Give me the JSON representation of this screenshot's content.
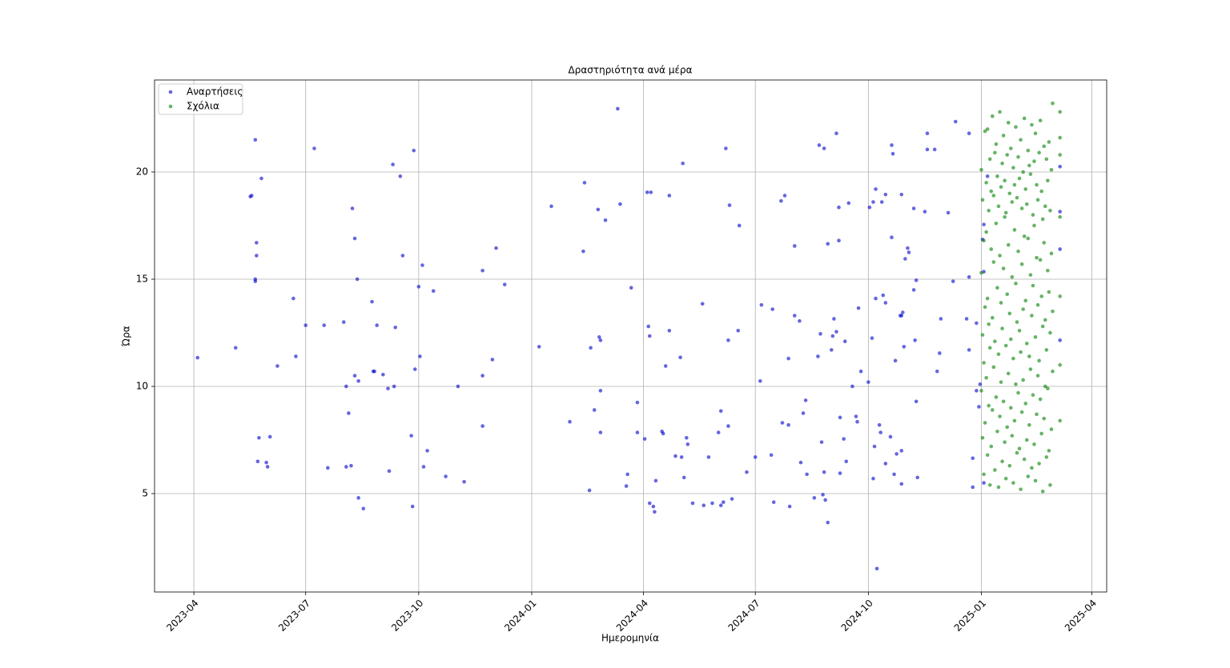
{
  "chart_data": {
    "type": "scatter",
    "title": "Δραστηριότητα ανά μέρα",
    "x_label": "Ημερομηνία",
    "y_label": "Ώρα",
    "xlim": [
      "2023-02-28",
      "2025-04-13"
    ],
    "xticks": [
      "2023-04",
      "2023-07",
      "2023-10",
      "2024-01",
      "2024-04",
      "2024-07",
      "2024-10",
      "2025-01",
      "2025-04"
    ],
    "ylim": [
      0.41,
      24.29
    ],
    "yticks": [
      5,
      10,
      15,
      20
    ],
    "grid": true,
    "legend": "upper left",
    "series": [
      {
        "name": "Αναρτήσεις",
        "color": "#0000cc",
        "x": [
          "2023-04-04",
          "2023-05-05",
          "2023-05-17",
          "2023-05-18",
          "2023-05-21",
          "2023-05-21",
          "2023-05-21",
          "2023-05-22",
          "2023-05-22",
          "2023-05-24",
          "2023-05-23",
          "2023-05-26",
          "2023-05-30",
          "2023-05-31",
          "2023-06-02",
          "2023-06-08",
          "2023-06-21",
          "2023-06-23",
          "2023-07-01",
          "2023-07-08",
          "2023-07-16",
          "2023-07-19",
          "2023-08-01",
          "2023-08-03",
          "2023-08-05",
          "2023-08-03",
          "2023-08-07",
          "2023-08-08",
          "2023-08-10",
          "2023-08-10",
          "2023-08-12",
          "2023-08-13",
          "2023-08-13",
          "2023-08-17",
          "2023-08-24",
          "2023-08-25",
          "2023-08-26",
          "2023-08-28",
          "2023-09-02",
          "2023-09-06",
          "2023-09-07",
          "2023-09-10",
          "2023-09-11",
          "2023-09-12",
          "2023-09-16",
          "2023-09-18",
          "2023-09-25",
          "2023-09-26",
          "2023-09-27",
          "2023-09-28",
          "2023-10-01",
          "2023-10-02",
          "2023-10-04",
          "2023-10-05",
          "2023-10-08",
          "2023-10-13",
          "2023-10-23",
          "2023-11-02",
          "2023-11-07",
          "2023-11-22",
          "2023-11-22",
          "2023-11-22",
          "2023-11-30",
          "2023-12-03",
          "2023-12-10",
          "2024-01-07",
          "2024-01-17",
          "2024-02-01",
          "2024-02-13",
          "2024-02-12",
          "2024-02-17",
          "2024-02-18",
          "2024-02-21",
          "2024-02-24",
          "2024-02-25",
          "2024-02-26",
          "2024-02-26",
          "2024-02-26",
          "2024-03-01",
          "2024-03-11",
          "2024-03-13",
          "2024-03-19",
          "2024-03-18",
          "2024-03-22",
          "2024-03-27",
          "2024-03-27",
          "2024-04-02",
          "2024-04-04",
          "2024-04-07",
          "2024-04-05",
          "2024-04-06",
          "2024-04-06",
          "2024-04-09",
          "2024-04-10",
          "2024-04-11",
          "2024-04-16",
          "2024-04-17",
          "2024-04-19",
          "2024-04-22",
          "2024-04-22",
          "2024-04-27",
          "2024-05-01",
          "2024-05-02",
          "2024-05-03",
          "2024-05-04",
          "2024-05-06",
          "2024-05-07",
          "2024-05-11",
          "2024-05-19",
          "2024-05-20",
          "2024-05-24",
          "2024-05-27",
          "2024-06-01",
          "2024-06-03",
          "2024-06-03",
          "2024-06-05",
          "2024-06-07",
          "2024-06-09",
          "2024-06-09",
          "2024-06-10",
          "2024-06-12",
          "2024-06-17",
          "2024-06-18",
          "2024-06-24",
          "2024-07-01",
          "2024-07-05",
          "2024-07-06",
          "2024-07-15",
          "2024-07-14",
          "2024-07-16",
          "2024-07-22",
          "2024-07-25",
          "2024-07-23",
          "2024-07-28",
          "2024-07-28",
          "2024-07-29",
          "2024-08-02",
          "2024-08-02",
          "2024-08-06",
          "2024-08-07",
          "2024-08-09",
          "2024-08-11",
          "2024-08-12",
          "2024-08-18",
          "2024-08-21",
          "2024-08-23",
          "2024-08-22",
          "2024-08-26",
          "2024-08-24",
          "2024-08-25",
          "2024-08-26",
          "2024-08-27",
          "2024-08-29",
          "2024-08-29",
          "2024-09-01",
          "2024-09-02",
          "2024-09-03",
          "2024-09-05",
          "2024-09-05",
          "2024-09-07",
          "2024-09-07",
          "2024-09-08",
          "2024-09-08",
          "2024-09-11",
          "2024-09-12",
          "2024-09-13",
          "2024-09-15",
          "2024-09-18",
          "2024-09-21",
          "2024-09-22",
          "2024-09-23",
          "2024-09-25",
          "2024-10-01",
          "2024-10-02",
          "2024-10-04",
          "2024-10-05",
          "2024-10-05",
          "2024-10-07",
          "2024-10-07",
          "2024-10-06",
          "2024-10-08",
          "2024-10-10",
          "2024-10-12",
          "2024-10-11",
          "2024-10-13",
          "2024-10-15",
          "2024-10-15",
          "2024-10-15",
          "2024-10-19",
          "2024-10-20",
          "2024-10-20",
          "2024-10-21",
          "2024-10-23",
          "2024-10-22",
          "2024-10-24",
          "2024-10-27",
          "2024-10-28",
          "2024-10-28",
          "2024-10-28",
          "2024-10-29",
          "2024-10-30",
          "2024-10-28",
          "2024-10-31",
          "2024-11-02",
          "2024-11-03",
          "2024-11-07",
          "2024-11-07",
          "2024-11-08",
          "2024-11-09",
          "2024-11-10",
          "2024-11-09",
          "2024-11-16",
          "2024-11-18",
          "2024-11-18",
          "2024-11-24",
          "2024-11-26",
          "2024-11-28",
          "2024-11-29",
          "2024-12-05",
          "2024-12-09",
          "2024-12-11",
          "2024-12-20",
          "2024-12-22",
          "2024-12-22",
          "2024-12-22",
          "2024-12-25",
          "2024-12-25",
          "2024-12-28",
          "2024-12-28",
          "2024-12-30",
          "2024-12-31",
          "2025-01-02",
          "2025-01-03",
          "2025-01-03",
          "2025-01-03",
          "2025-01-06",
          "2025-03-06",
          "2025-03-06",
          "2025-03-06",
          "2025-03-06"
        ],
        "values": [
          11.34,
          11.8,
          18.85,
          18.9,
          21.5,
          15.0,
          14.9,
          16.7,
          16.1,
          7.6,
          6.5,
          19.7,
          6.45,
          6.25,
          7.65,
          10.95,
          14.1,
          11.4,
          12.85,
          21.1,
          12.85,
          6.2,
          13.0,
          10.0,
          8.75,
          6.25,
          6.3,
          18.3,
          16.9,
          10.5,
          15.0,
          10.25,
          4.8,
          4.3,
          13.95,
          10.7,
          10.7,
          12.85,
          10.55,
          9.9,
          6.05,
          20.35,
          10.0,
          12.75,
          19.8,
          16.1,
          7.7,
          4.4,
          21.0,
          10.8,
          14.65,
          11.4,
          15.65,
          6.25,
          7.0,
          14.45,
          5.8,
          10.0,
          5.55,
          15.4,
          10.5,
          8.15,
          11.25,
          16.45,
          14.75,
          11.85,
          18.4,
          8.35,
          19.5,
          16.3,
          5.15,
          11.8,
          8.9,
          18.25,
          12.3,
          12.15,
          9.8,
          7.85,
          17.75,
          22.95,
          18.5,
          5.9,
          5.35,
          14.6,
          9.25,
          7.85,
          7.55,
          19.05,
          19.05,
          12.8,
          12.35,
          4.55,
          4.4,
          4.15,
          5.6,
          7.9,
          7.8,
          10.95,
          18.9,
          12.6,
          6.75,
          11.35,
          6.7,
          20.4,
          5.75,
          7.6,
          7.3,
          4.55,
          13.85,
          4.45,
          6.7,
          4.55,
          7.85,
          8.85,
          4.45,
          4.6,
          21.1,
          8.15,
          12.15,
          18.45,
          4.75,
          12.6,
          17.5,
          6.0,
          6.7,
          10.25,
          13.8,
          13.6,
          6.8,
          4.6,
          18.65,
          18.9,
          8.3,
          11.3,
          8.2,
          4.4,
          16.55,
          13.3,
          13.05,
          6.45,
          8.75,
          9.35,
          5.9,
          4.8,
          11.4,
          12.45,
          21.25,
          21.1,
          7.4,
          4.95,
          6.0,
          4.7,
          3.65,
          16.65,
          11.7,
          12.35,
          13.15,
          12.55,
          21.8,
          18.35,
          16.8,
          8.55,
          5.95,
          7.55,
          12.1,
          6.5,
          18.55,
          10.0,
          8.6,
          8.35,
          13.65,
          10.7,
          10.2,
          18.35,
          12.25,
          18.6,
          5.7,
          19.2,
          14.1,
          7.2,
          1.5,
          8.2,
          18.6,
          7.85,
          14.25,
          18.95,
          13.9,
          6.4,
          7.65,
          16.95,
          21.25,
          20.85,
          11.2,
          5.9,
          6.85,
          13.3,
          13.3,
          7.0,
          18.95,
          13.45,
          11.85,
          5.45,
          15.95,
          16.45,
          16.25,
          18.3,
          14.5,
          12.15,
          14.95,
          5.75,
          9.3,
          18.15,
          21.8,
          21.05,
          21.05,
          10.7,
          11.55,
          13.15,
          18.1,
          14.9,
          22.35,
          13.15,
          21.8,
          11.7,
          15.1,
          6.65,
          5.3,
          9.8,
          12.95,
          9.05,
          10.1,
          16.85,
          17.55,
          15.35,
          5.5,
          19.8,
          18.15,
          16.4,
          12.15,
          20.25
        ]
      },
      {
        "name": "Σχόλια",
        "color": "#008000",
        "x": [
          "2025-01-01",
          "2025-01-01",
          "2025-01-01",
          "2025-01-02",
          "2025-01-02",
          "2025-01-02",
          "2025-01-03",
          "2025-01-03",
          "2025-01-03",
          "2025-01-04",
          "2025-01-04",
          "2025-01-04",
          "2025-01-05",
          "2025-01-05",
          "2025-01-05",
          "2025-01-06",
          "2025-01-06",
          "2025-01-06",
          "2025-01-07",
          "2025-01-07",
          "2025-01-07",
          "2025-01-08",
          "2025-01-08",
          "2025-01-08",
          "2025-01-09",
          "2025-01-09",
          "2025-01-09",
          "2025-01-10",
          "2025-01-10",
          "2025-01-10",
          "2025-01-11",
          "2025-01-11",
          "2025-01-11",
          "2025-01-12",
          "2025-01-12",
          "2025-01-12",
          "2025-01-13",
          "2025-01-13",
          "2025-01-13",
          "2025-01-14",
          "2025-01-14",
          "2025-01-14",
          "2025-01-15",
          "2025-01-15",
          "2025-01-15",
          "2025-01-16",
          "2025-01-16",
          "2025-01-16",
          "2025-01-17",
          "2025-01-17",
          "2025-01-17",
          "2025-01-18",
          "2025-01-18",
          "2025-01-18",
          "2025-01-19",
          "2025-01-19",
          "2025-01-19",
          "2025-01-20",
          "2025-01-20",
          "2025-01-20",
          "2025-01-21",
          "2025-01-21",
          "2025-01-21",
          "2025-01-22",
          "2025-01-22",
          "2025-01-22",
          "2025-01-23",
          "2025-01-23",
          "2025-01-23",
          "2025-01-24",
          "2025-01-24",
          "2025-01-24",
          "2025-01-25",
          "2025-01-25",
          "2025-01-25",
          "2025-01-26",
          "2025-01-26",
          "2025-01-26",
          "2025-01-27",
          "2025-01-27",
          "2025-01-27",
          "2025-01-28",
          "2025-01-28",
          "2025-01-28",
          "2025-01-29",
          "2025-01-29",
          "2025-01-29",
          "2025-01-30",
          "2025-01-30",
          "2025-01-30",
          "2025-01-31",
          "2025-01-31",
          "2025-01-31",
          "2025-02-01",
          "2025-02-01",
          "2025-02-01",
          "2025-02-02",
          "2025-02-02",
          "2025-02-02",
          "2025-02-03",
          "2025-02-03",
          "2025-02-03",
          "2025-02-04",
          "2025-02-04",
          "2025-02-04",
          "2025-02-05",
          "2025-02-05",
          "2025-02-05",
          "2025-02-06",
          "2025-02-06",
          "2025-02-06",
          "2025-02-07",
          "2025-02-07",
          "2025-02-07",
          "2025-02-08",
          "2025-02-08",
          "2025-02-08",
          "2025-02-09",
          "2025-02-09",
          "2025-02-09",
          "2025-02-10",
          "2025-02-10",
          "2025-02-10",
          "2025-02-11",
          "2025-02-11",
          "2025-02-11",
          "2025-02-12",
          "2025-02-12",
          "2025-02-12",
          "2025-02-13",
          "2025-02-13",
          "2025-02-13",
          "2025-02-14",
          "2025-02-14",
          "2025-02-14",
          "2025-02-15",
          "2025-02-15",
          "2025-02-15",
          "2025-02-16",
          "2025-02-16",
          "2025-02-16",
          "2025-02-17",
          "2025-02-17",
          "2025-02-17",
          "2025-02-18",
          "2025-02-18",
          "2025-02-18",
          "2025-02-19",
          "2025-02-19",
          "2025-02-19",
          "2025-02-20",
          "2025-02-20",
          "2025-02-20",
          "2025-02-21",
          "2025-02-21",
          "2025-02-21",
          "2025-02-22",
          "2025-02-22",
          "2025-02-22",
          "2025-02-23",
          "2025-02-23",
          "2025-02-23",
          "2025-02-24",
          "2025-02-24",
          "2025-02-24",
          "2025-02-25",
          "2025-02-25",
          "2025-02-25",
          "2025-02-26",
          "2025-02-26",
          "2025-02-26",
          "2025-02-27",
          "2025-02-27",
          "2025-02-27",
          "2025-02-28",
          "2025-02-28",
          "2025-02-28",
          "2025-03-06",
          "2025-03-06",
          "2025-03-06",
          "2025-03-06",
          "2025-03-06",
          "2025-03-06",
          "2025-03-06"
        ],
        "values": [
          9.8,
          15.3,
          20.1,
          7.6,
          12.4,
          18.7,
          5.9,
          11.1,
          16.8,
          8.3,
          13.7,
          21.9,
          10.4,
          17.2,
          19.5,
          6.8,
          14.1,
          22.0,
          9.1,
          12.9,
          18.2,
          5.4,
          11.8,
          20.6,
          7.2,
          16.4,
          19.1,
          8.9,
          13.2,
          22.6,
          10.9,
          15.8,
          18.9,
          6.1,
          12.1,
          20.9,
          9.5,
          17.6,
          21.3,
          7.9,
          14.6,
          19.8,
          5.3,
          11.5,
          18.4,
          8.6,
          16.1,
          22.8,
          10.2,
          13.9,
          19.3,
          6.5,
          12.7,
          20.4,
          9.3,
          15.5,
          21.7,
          7.4,
          17.9,
          19.6,
          5.7,
          11.9,
          18.1,
          8.1,
          14.3,
          20.8,
          10.6,
          16.6,
          22.3,
          6.3,
          13.4,
          19.0,
          9.0,
          12.2,
          21.1,
          7.7,
          15.1,
          18.6,
          5.5,
          11.3,
          20.2,
          8.4,
          17.3,
          19.4,
          10.1,
          14.8,
          22.1,
          6.9,
          13.0,
          18.8,
          9.7,
          16.3,
          20.7,
          7.1,
          12.6,
          19.7,
          5.2,
          11.6,
          21.5,
          8.8,
          15.7,
          18.3,
          10.3,
          13.6,
          20.0,
          6.6,
          17.0,
          22.5,
          9.2,
          14.0,
          19.2,
          7.5,
          12.0,
          18.5,
          5.8,
          16.9,
          21.0,
          8.2,
          11.4,
          20.3,
          10.8,
          15.2,
          19.9,
          6.2,
          13.3,
          22.2,
          9.6,
          14.7,
          18.0,
          7.3,
          17.5,
          20.5,
          5.6,
          12.3,
          21.8,
          8.7,
          16.0,
          19.4,
          10.5,
          13.8,
          18.7,
          6.4,
          11.2,
          20.9,
          9.4,
          15.9,
          22.4,
          7.8,
          14.2,
          19.1,
          5.1,
          12.8,
          17.8,
          8.5,
          16.7,
          21.2,
          10.0,
          13.1,
          18.4,
          6.7,
          11.7,
          20.6,
          9.9,
          15.4,
          19.6,
          7.0,
          14.4,
          21.4,
          5.4,
          12.5,
          18.2,
          8.0,
          16.2,
          20.1,
          10.7,
          13.5,
          23.2,
          8.4,
          11.0,
          14.2,
          17.9,
          20.8,
          21.6,
          22.8
        ]
      }
    ]
  }
}
